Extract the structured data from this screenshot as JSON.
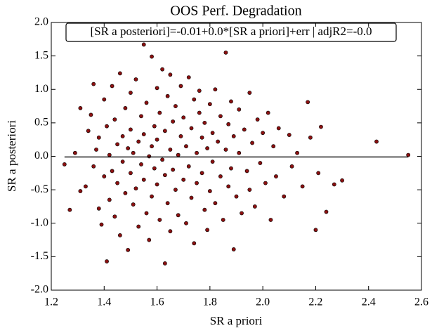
{
  "chart_data": {
    "type": "scatter",
    "title": "OOS Perf. Degradation",
    "annotation": "[SR a posteriori]=-0.01+0.0*[SR a priori]+err | adjR2=-0.0",
    "x_label": "SR a priori",
    "y_label": "SR a posteriori",
    "color": "#8b1010",
    "x": [
      1.25,
      1.27,
      1.29,
      1.31,
      1.31,
      1.33,
      1.34,
      1.35,
      1.36,
      1.36,
      1.37,
      1.38,
      1.38,
      1.39,
      1.4,
      1.4,
      1.41,
      1.41,
      1.42,
      1.42,
      1.43,
      1.43,
      1.44,
      1.44,
      1.45,
      1.45,
      1.46,
      1.46,
      1.47,
      1.47,
      1.48,
      1.48,
      1.49,
      1.49,
      1.5,
      1.5,
      1.5,
      1.51,
      1.51,
      1.52,
      1.52,
      1.53,
      1.53,
      1.54,
      1.54,
      1.55,
      1.55,
      1.55,
      1.56,
      1.56,
      1.57,
      1.57,
      1.58,
      1.58,
      1.58,
      1.59,
      1.59,
      1.6,
      1.6,
      1.6,
      1.61,
      1.61,
      1.62,
      1.62,
      1.63,
      1.63,
      1.63,
      1.64,
      1.64,
      1.65,
      1.65,
      1.65,
      1.66,
      1.66,
      1.67,
      1.67,
      1.68,
      1.68,
      1.69,
      1.69,
      1.7,
      1.7,
      1.71,
      1.71,
      1.72,
      1.72,
      1.73,
      1.73,
      1.74,
      1.74,
      1.75,
      1.75,
      1.76,
      1.76,
      1.77,
      1.77,
      1.78,
      1.78,
      1.79,
      1.79,
      1.8,
      1.8,
      1.81,
      1.81,
      1.82,
      1.82,
      1.83,
      1.84,
      1.84,
      1.85,
      1.86,
      1.86,
      1.87,
      1.87,
      1.88,
      1.88,
      1.89,
      1.89,
      1.9,
      1.91,
      1.91,
      1.92,
      1.93,
      1.94,
      1.95,
      1.95,
      1.96,
      1.97,
      1.98,
      1.99,
      2.0,
      2.01,
      2.02,
      2.03,
      2.04,
      2.05,
      2.06,
      2.08,
      2.1,
      2.11,
      2.13,
      2.15,
      2.17,
      2.18,
      2.2,
      2.21,
      2.22,
      2.24,
      2.27,
      2.3,
      2.43,
      2.55
    ],
    "y": [
      -0.12,
      -0.8,
      0.05,
      0.72,
      -0.52,
      -0.45,
      0.38,
      0.62,
      -0.15,
      1.08,
      0.1,
      -0.78,
      0.28,
      -1.02,
      0.85,
      -0.3,
      -1.57,
      0.45,
      0.02,
      -0.65,
      1.05,
      -0.22,
      0.55,
      -0.9,
      0.18,
      -0.4,
      1.24,
      -1.18,
      0.3,
      -0.08,
      0.72,
      -0.55,
      -1.4,
      0.12,
      0.95,
      -0.25,
      0.4,
      -0.72,
      0.05,
      1.15,
      -0.48,
      0.22,
      -1.05,
      0.6,
      -0.12,
      1.67,
      -0.35,
      0.33,
      -0.85,
      0.8,
      0.0,
      -1.25,
      1.49,
      0.15,
      -0.6,
      0.45,
      -0.18,
      1.02,
      -0.42,
      0.25,
      -0.95,
      0.65,
      -0.05,
      1.3,
      -1.6,
      0.38,
      -0.28,
      0.9,
      -0.7,
      0.1,
      1.22,
      -1.12,
      0.52,
      -0.2,
      -0.5,
      0.75,
      0.02,
      -0.88,
      1.05,
      0.3,
      -0.35,
      0.58,
      -1.0,
      0.15,
      1.18,
      -0.15,
      0.42,
      -0.62,
      0.85,
      -1.3,
      0.05,
      -0.4,
      0.65,
      0.98,
      -0.25,
      0.28,
      -0.8,
      0.5,
      0.12,
      -1.1,
      0.78,
      -0.52,
      0.35,
      -0.08,
      1.0,
      -0.7,
      0.22,
      -0.3,
      0.6,
      -0.95,
      1.55,
      0.1,
      -0.45,
      0.48,
      0.82,
      -0.18,
      -1.39,
      0.3,
      -0.6,
      0.7,
      0.05,
      -0.85,
      0.4,
      -0.22,
      0.95,
      -0.5,
      0.2,
      -0.75,
      0.55,
      -0.1,
      0.35,
      -0.4,
      0.65,
      -0.95,
      0.15,
      -0.3,
      0.42,
      -0.6,
      0.32,
      -0.15,
      0.05,
      -0.45,
      0.81,
      0.28,
      -1.1,
      -0.25,
      0.44,
      -0.83,
      -0.42,
      -0.36,
      0.22,
      0.02
    ],
    "fit_line": {
      "x": [
        1.25,
        2.55
      ],
      "y": [
        -0.01,
        -0.01
      ],
      "color": "#000000"
    },
    "xlim": [
      1.2,
      2.6
    ],
    "ylim": [
      -2.0,
      2.0
    ],
    "xticks": [
      1.2,
      1.4,
      1.6,
      1.8,
      {
        "value": 2,
        "label": "2.0"
      },
      2.2,
      2.4,
      2.6
    ],
    "yticks": [
      {
        "value": -2,
        "label": "-2.0"
      },
      -1.5,
      {
        "value": -1,
        "label": "-1.0"
      },
      -0.5,
      {
        "value": 0,
        "label": "0.0"
      },
      0.5,
      {
        "value": 1,
        "label": "1.0"
      },
      1.5,
      {
        "value": 2,
        "label": "2.0"
      }
    ],
    "grid": false
  }
}
